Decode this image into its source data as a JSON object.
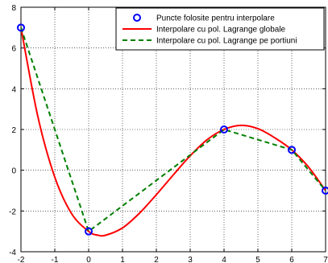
{
  "chart_data": {
    "type": "line",
    "xlim": [
      -2,
      7
    ],
    "ylim": [
      -4,
      8
    ],
    "xticks": [
      -2,
      -1,
      0,
      1,
      2,
      3,
      4,
      5,
      6,
      7
    ],
    "yticks": [
      -4,
      -2,
      0,
      2,
      4,
      6,
      8
    ],
    "grid": true,
    "legend_position": "top-right",
    "series": [
      {
        "name": "Puncte folosite pentru interpolare",
        "kind": "markers",
        "color": "#0000ff",
        "marker": "circle",
        "x": [
          -2,
          0,
          4,
          6,
          7
        ],
        "y": [
          7,
          -3,
          2,
          1,
          -1
        ]
      },
      {
        "name": "Interpolare cu pol. Lagrange globale",
        "kind": "curve",
        "color": "#ff0000",
        "line_style": "solid",
        "x": [
          -2,
          -1.5,
          -1,
          -0.5,
          0,
          0.25,
          0.5,
          1,
          1.5,
          2,
          2.5,
          3,
          3.5,
          4,
          4.5,
          5,
          5.5,
          6,
          6.5,
          7
        ],
        "y": [
          7,
          2.63,
          -0.34,
          -2.14,
          -3,
          -3.18,
          -3.19,
          -2.83,
          -2.11,
          -1.2,
          -0.23,
          0.71,
          1.5,
          2,
          2.2,
          2.04,
          1.59,
          1,
          0.15,
          -1
        ]
      },
      {
        "name": "Interpolare cu pol. Lagrange pe portiuni",
        "kind": "curve",
        "color": "#008000",
        "line_style": "dashed",
        "x": [
          -2,
          0,
          4,
          6,
          7
        ],
        "y": [
          7,
          -3,
          2,
          1,
          -1
        ]
      }
    ]
  }
}
